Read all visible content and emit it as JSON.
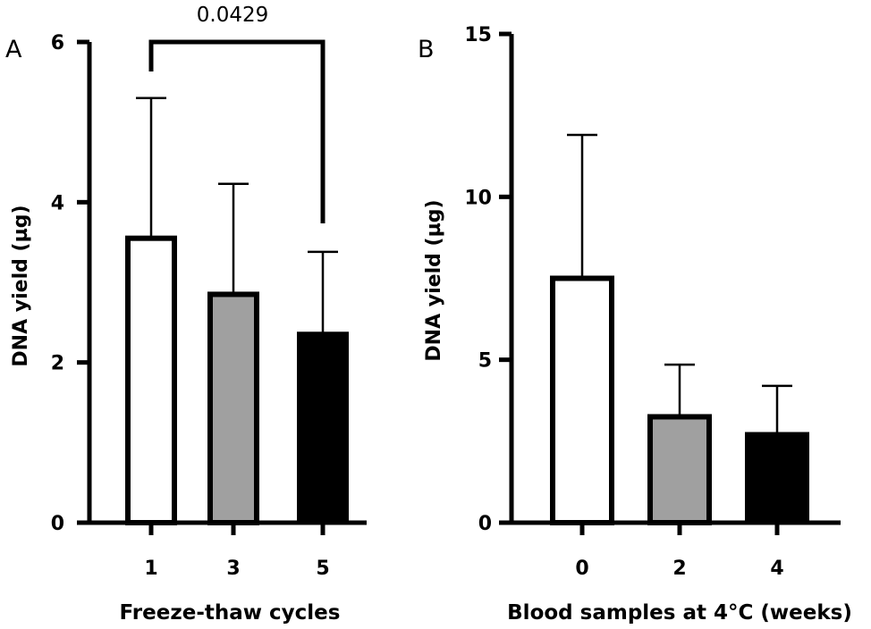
{
  "chart_data": [
    {
      "panel": "A",
      "type": "bar",
      "categories": [
        "1",
        "3",
        "5"
      ],
      "values": [
        3.55,
        2.85,
        2.35
      ],
      "errors": [
        1.75,
        1.38,
        1.03
      ],
      "fills": [
        "#ffffff",
        "#a0a0a0",
        "#000000"
      ],
      "xlabel": "Freeze-thaw cycles",
      "ylabel": "DNA yield (µg)",
      "ylim": [
        0,
        6
      ],
      "yticks": [
        "0",
        "2",
        "4",
        "6"
      ],
      "annotation": {
        "text": "0.0429",
        "from": "1",
        "to": "5"
      }
    },
    {
      "panel": "B",
      "type": "bar",
      "categories": [
        "0",
        "2",
        "4"
      ],
      "values": [
        7.5,
        3.25,
        2.7
      ],
      "errors": [
        4.4,
        1.6,
        1.5
      ],
      "fills": [
        "#ffffff",
        "#a0a0a0",
        "#000000"
      ],
      "xlabel": "Blood samples at 4°C (weeks)",
      "ylabel": "DNA yield (µg)",
      "ylim": [
        0,
        15
      ],
      "yticks": [
        "0",
        "5",
        "10",
        "15"
      ]
    }
  ]
}
